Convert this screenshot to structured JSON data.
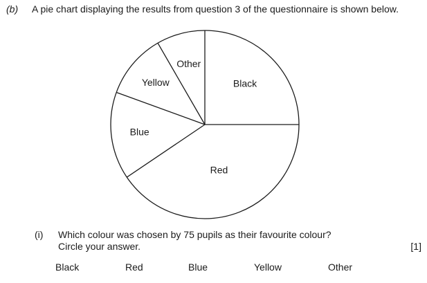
{
  "question": {
    "part_label": "(b)",
    "intro": "A pie chart displaying the results from question 3 of the questionnaire is shown below.",
    "sub_number": "(i)",
    "line1": "Which colour was chosen by 75 pupils as their favourite colour?",
    "line2": "Circle your answer.",
    "marks": "[1]"
  },
  "options": [
    "Black",
    "Red",
    "Blue",
    "Yellow",
    "Other"
  ],
  "chart_data": {
    "type": "pie",
    "start_angle_deg": 90,
    "direction": "clockwise",
    "slices": [
      {
        "label": "Black",
        "angle_deg": 90
      },
      {
        "label": "Red",
        "angle_deg": 146
      },
      {
        "label": "Blue",
        "angle_deg": 54
      },
      {
        "label": "Yellow",
        "angle_deg": 40
      },
      {
        "label": "Other",
        "angle_deg": 30
      }
    ]
  }
}
